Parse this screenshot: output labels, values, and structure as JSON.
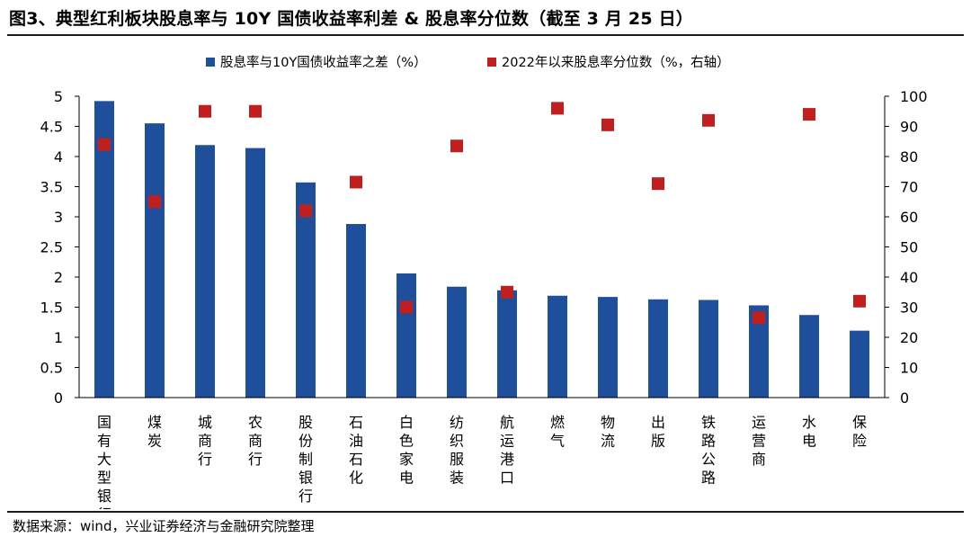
{
  "title": "图3、典型红利板块股息率与 10Y 国债收益率利差  &  股息率分位数（截至 3 月 25 日）",
  "source": "数据来源：wind，兴业证券经济与金融研究院整理",
  "colors": {
    "bar": "#1F4E9A",
    "marker": "#C01F1F",
    "axis": "#000000"
  },
  "chart_data": {
    "type": "bar",
    "categories": [
      "国有大型银行",
      "煤炭",
      "城商行",
      "农商行",
      "股份制银行",
      "石油石化",
      "白色家电",
      "纺织服装",
      "航运港口",
      "燃气",
      "物流",
      "出版",
      "铁路公路",
      "运营商",
      "水电",
      "保险"
    ],
    "series": [
      {
        "name": "股息率与10Y国债收益率之差（%）",
        "type": "bar",
        "axis": "left",
        "values": [
          4.92,
          4.55,
          4.19,
          4.14,
          3.57,
          2.88,
          2.06,
          1.84,
          1.78,
          1.69,
          1.67,
          1.63,
          1.62,
          1.53,
          1.37,
          1.11
        ]
      },
      {
        "name": "2022年以来股息率分位数（%，右轴）",
        "type": "scatter",
        "axis": "right",
        "values": [
          84,
          65,
          95,
          95,
          62,
          71.5,
          30,
          83.5,
          35,
          96,
          90.5,
          71,
          92,
          26.5,
          94,
          32
        ]
      }
    ],
    "left_axis": {
      "min": 0,
      "max": 5,
      "ticks": [
        "0",
        "0.5",
        "1",
        "1.5",
        "2",
        "2.5",
        "3",
        "3.5",
        "4",
        "4.5",
        "5"
      ]
    },
    "right_axis": {
      "min": 0,
      "max": 100,
      "ticks": [
        "0",
        "10",
        "20",
        "30",
        "40",
        "50",
        "60",
        "70",
        "80",
        "90",
        "100"
      ]
    },
    "legend_position": "top-center",
    "grid": false
  }
}
